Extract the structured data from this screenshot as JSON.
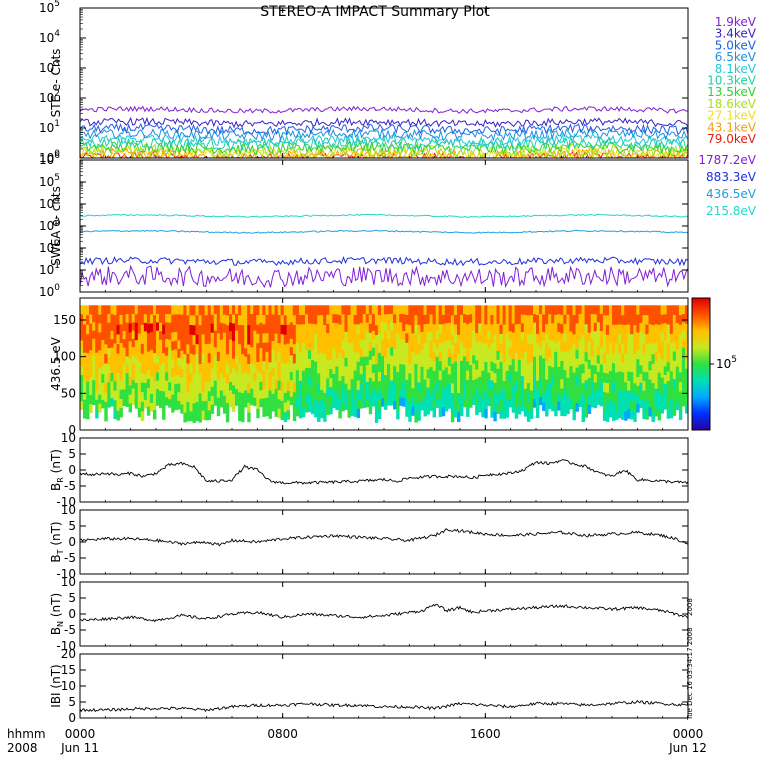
{
  "title": "STEREO-A IMPACT Summary Plot",
  "time_axis": {
    "corner_top": "hhmm",
    "corner_bottom": "2008",
    "ticks": [
      {
        "hour": 0,
        "label": "0000",
        "sub": "Jun 11"
      },
      {
        "hour": 8,
        "label": "0800",
        "sub": ""
      },
      {
        "hour": 16,
        "label": "1600",
        "sub": ""
      },
      {
        "hour": 24,
        "label": "0000",
        "sub": "Jun 12"
      }
    ],
    "xlim_hours": [
      0,
      24
    ]
  },
  "side_stamp_1": "2008",
  "side_stamp_2": "Tue Dec 16 03:34:17 2008",
  "chart_data": [
    {
      "id": "ste",
      "type": "line",
      "ylabel": "STE e- Cnts",
      "yscale": "log",
      "ylim": [
        1,
        100000
      ],
      "yticks": [
        {
          "base": "10",
          "exp": "0",
          "value": 1
        },
        {
          "base": "10",
          "exp": "1",
          "value": 10
        },
        {
          "base": "10",
          "exp": "2",
          "value": 100
        },
        {
          "base": "10",
          "exp": "3",
          "value": 1000
        },
        {
          "base": "10",
          "exp": "4",
          "value": 10000
        },
        {
          "base": "10",
          "exp": "5",
          "value": 100000
        }
      ],
      "series": [
        {
          "name": "1.9keV",
          "color": "#7f1fd6",
          "level": 40,
          "noise": 0.08
        },
        {
          "name": "3.4keV",
          "color": "#3a1fc8",
          "level": 15,
          "noise": 0.12
        },
        {
          "name": "5.0keV",
          "color": "#1f5fe0",
          "level": 9,
          "noise": 0.14
        },
        {
          "name": "6.5keV",
          "color": "#1f8fe0",
          "level": 6,
          "noise": 0.15
        },
        {
          "name": "8.1keV",
          "color": "#1fc8d8",
          "level": 4,
          "noise": 0.16
        },
        {
          "name": "10.3keV",
          "color": "#1fd0a0",
          "level": 3,
          "noise": 0.18
        },
        {
          "name": "13.5keV",
          "color": "#2fd030",
          "level": 2.2,
          "noise": 0.18
        },
        {
          "name": "18.6keV",
          "color": "#a8e020",
          "level": 1.7,
          "noise": 0.2
        },
        {
          "name": "27.1keV",
          "color": "#f0e020",
          "level": 1.4,
          "noise": 0.2
        },
        {
          "name": "43.1keV",
          "color": "#f0a010",
          "level": 1.2,
          "noise": 0.2
        },
        {
          "name": "79.0keV",
          "color": "#e02010",
          "level": 1.05,
          "noise": 0.15
        }
      ]
    },
    {
      "id": "swea",
      "type": "line",
      "ylabel": "SWEA e- cnts",
      "yscale": "log",
      "ylim": [
        1,
        1000000
      ],
      "yticks": [
        {
          "base": "10",
          "exp": "0",
          "value": 1
        },
        {
          "base": "10",
          "exp": "1",
          "value": 10
        },
        {
          "base": "10",
          "exp": "2",
          "value": 100
        },
        {
          "base": "10",
          "exp": "3",
          "value": 1000
        },
        {
          "base": "10",
          "exp": "4",
          "value": 10000
        },
        {
          "base": "10",
          "exp": "5",
          "value": 100000
        },
        {
          "base": "10",
          "exp": "6",
          "value": 1000000
        }
      ],
      "series": [
        {
          "name": "1787.2eV",
          "color": "#7f1fd6",
          "level": 5,
          "noise": 0.45
        },
        {
          "name": "883.3eV",
          "color": "#1f2fe0",
          "level": 25,
          "noise": 0.15
        },
        {
          "name": "436.5eV",
          "color": "#1f9fe0",
          "level": 550,
          "noise": 0.03
        },
        {
          "name": "215.8eV",
          "color": "#1fd8c8",
          "level": 2900,
          "noise": 0.03
        }
      ]
    },
    {
      "id": "pad",
      "type": "heatmap",
      "ylabel": "436.5 eV",
      "ylim": [
        0,
        180
      ],
      "yticks": [
        0,
        50,
        100,
        150
      ],
      "colorbar_label": "10",
      "colorbar_exp": "5",
      "colorbar": [
        "#2b00a0",
        "#0030ff",
        "#00a8ff",
        "#00e0b0",
        "#30e040",
        "#c8e820",
        "#ffc000",
        "#ff5000",
        "#e00000"
      ]
    },
    {
      "id": "br",
      "type": "line",
      "ylabel": "B",
      "ylabel_sub": "R",
      "ylabel_unit": "(nT)",
      "ylim": [
        -10,
        10
      ],
      "yticks": [
        -10,
        -5,
        0,
        5,
        10
      ],
      "x": [
        0,
        0.5,
        1,
        1.5,
        2,
        2.5,
        3,
        3.5,
        4,
        4.5,
        5,
        5.5,
        6,
        6.5,
        7,
        7.5,
        8,
        9,
        10,
        11,
        12,
        12.5,
        13,
        14,
        15,
        15.5,
        16,
        17,
        17.5,
        18,
        18.5,
        19,
        19.5,
        20,
        20.5,
        21,
        21.5,
        22,
        23,
        24
      ],
      "values": [
        -1,
        -1.5,
        -1,
        -1.5,
        -1,
        -2,
        -1,
        1.5,
        2,
        1,
        -3.5,
        -3.5,
        -3,
        1,
        0,
        -3.5,
        -4,
        -4,
        -3.8,
        -3.5,
        -3,
        -3.5,
        -2.5,
        -2,
        -2,
        -2.5,
        -1.5,
        -1,
        0,
        2.5,
        2,
        3,
        2,
        1,
        -1,
        -2,
        0,
        -3,
        -3.5,
        -4
      ]
    },
    {
      "id": "bt",
      "type": "line",
      "ylabel": "B",
      "ylabel_sub": "T",
      "ylabel_unit": "(nT)",
      "ylim": [
        -10,
        10
      ],
      "yticks": [
        -10,
        -5,
        0,
        5,
        10
      ],
      "x": [
        0,
        1,
        2,
        3,
        4,
        5,
        5.5,
        6,
        7,
        8,
        9,
        10,
        11,
        12,
        13,
        14,
        14.5,
        15,
        16,
        17,
        18,
        19,
        20,
        21,
        22,
        23,
        23.5,
        24
      ],
      "values": [
        0.5,
        1,
        1,
        0.5,
        -0.5,
        0,
        -1,
        0.5,
        0,
        1,
        1.5,
        2,
        1.5,
        1,
        0.5,
        2,
        4,
        3.5,
        2.5,
        2,
        2.5,
        3,
        2,
        2.5,
        3,
        2,
        1,
        -0.5
      ]
    },
    {
      "id": "bn",
      "type": "line",
      "ylabel": "B",
      "ylabel_sub": "N",
      "ylabel_unit": "(nT)",
      "ylim": [
        -10,
        10
      ],
      "yticks": [
        -10,
        -5,
        0,
        5,
        10
      ],
      "x": [
        0,
        1,
        2,
        3,
        4,
        5,
        6,
        7,
        8,
        9,
        10,
        11,
        12,
        13,
        13.5,
        14,
        14.5,
        15,
        15.5,
        16,
        17,
        18,
        19,
        20,
        21,
        22,
        23,
        24
      ],
      "values": [
        -2,
        -1.5,
        -1,
        -2,
        -0.5,
        -1.5,
        0,
        0.5,
        -1,
        0,
        -0.5,
        -1,
        -0.5,
        0.5,
        1,
        3,
        1,
        2,
        0.5,
        1,
        1.5,
        2,
        2.5,
        2,
        1.5,
        2,
        1,
        -1
      ]
    },
    {
      "id": "bmag",
      "type": "line",
      "ylabel": "IBI",
      "ylabel_unit": "(nT)",
      "ylim": [
        0,
        20
      ],
      "yticks": [
        0,
        5,
        10,
        15,
        20
      ],
      "x": [
        0,
        1,
        2,
        3,
        4,
        5,
        6,
        7,
        8,
        9,
        10,
        11,
        12,
        13,
        14,
        15,
        16,
        17,
        18,
        19,
        20,
        21,
        22,
        23,
        24
      ],
      "values": [
        2.5,
        2.5,
        2.8,
        3,
        3,
        2.5,
        3.5,
        4,
        4,
        4.5,
        4,
        4,
        3.5,
        3.5,
        3,
        4.5,
        4,
        3.5,
        4.5,
        4.5,
        4,
        4.5,
        5,
        4.5,
        4
      ]
    }
  ]
}
